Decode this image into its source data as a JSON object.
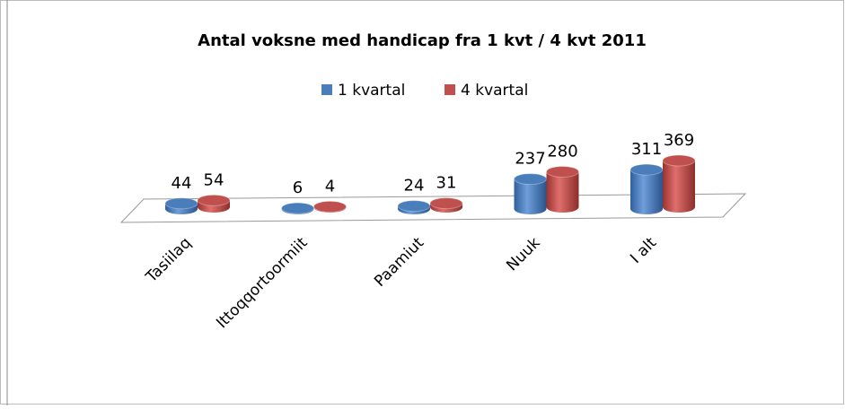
{
  "chart_data": {
    "type": "bar",
    "title": "Antal voksne med handicap fra 1 kvt / 4 kvt 2011",
    "categories": [
      "Tasiilaq",
      "Ittoqqortoormiit",
      "Paamiut",
      "Nuuk",
      "I alt"
    ],
    "series": [
      {
        "name": "1 kvartal",
        "color": "#4a7ebb",
        "values": [
          44,
          6,
          24,
          237,
          311
        ]
      },
      {
        "name": "4 kvartal",
        "color": "#c0504d",
        "values": [
          54,
          4,
          31,
          280,
          369
        ]
      }
    ],
    "legend": "top"
  }
}
